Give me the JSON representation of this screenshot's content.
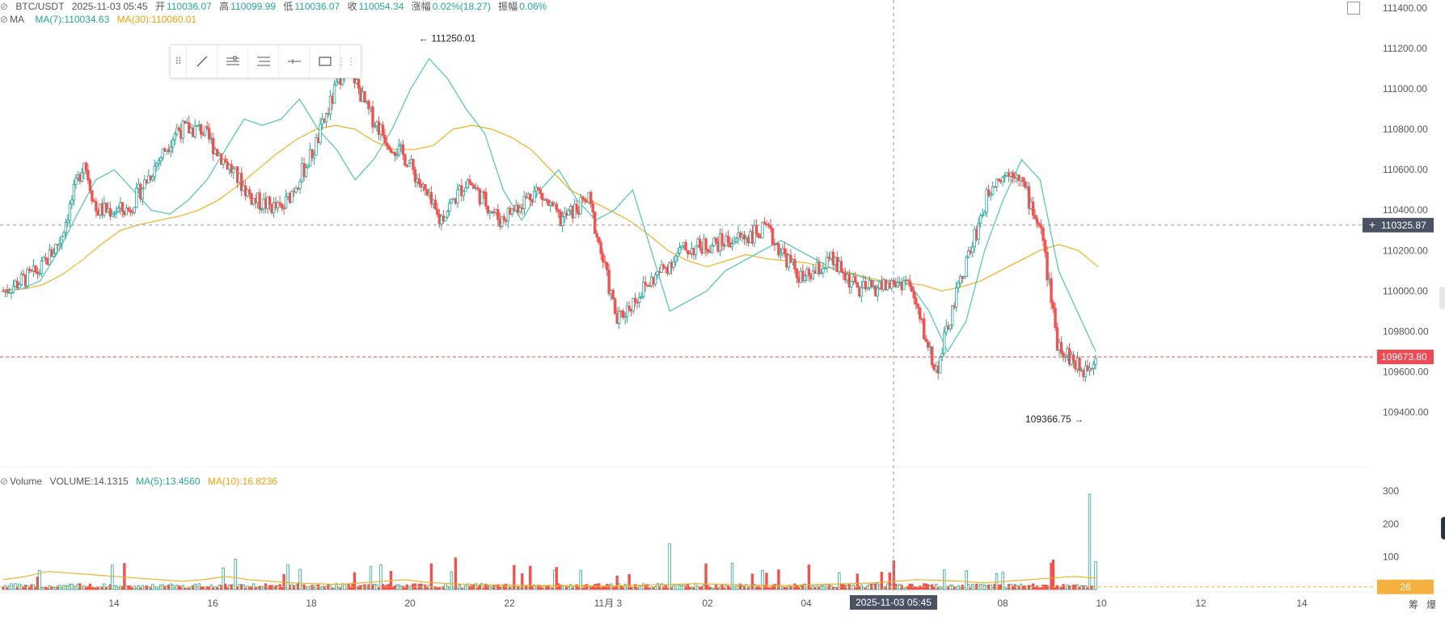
{
  "header": {
    "symbol": "BTC/USDT",
    "datetime": "2025-11-03 05:45",
    "open_label": "开",
    "open": "110036.07",
    "high_label": "高",
    "high": "110099.99",
    "low_label": "低",
    "low": "110036.07",
    "close_label": "收",
    "close": "110054.34",
    "change_label": "涨幅",
    "change": "0.02%(18.27)",
    "amplitude_label": "振幅",
    "amplitude": "0.06%"
  },
  "ma_legend": {
    "name": "MA",
    "ma7": "MA(7):110034.63",
    "ma30": "MA(30):110060.01"
  },
  "volume_legend": {
    "name": "Volume",
    "volume": "VOLUME:14.1315",
    "ma5": "MA(5):13.4560",
    "ma10": "MA(10):16.8236"
  },
  "bottom_right": {
    "left": "筹",
    "right": "爆"
  },
  "colors": {
    "up": "#26a69a",
    "down": "#ef5350",
    "ma7": "#4ec5b4",
    "ma30": "#f2b01e",
    "crosshair_label_bg": "#4a5363",
    "last_price_bg": "#ef4a53",
    "volume_badge_bg": "#f5b13f"
  },
  "icons": [
    "drag-grip-icon",
    "trend-line-icon",
    "parallel-lines-icon",
    "fib-lines-icon",
    "horizontal-ray-icon",
    "rectangle-icon",
    "toolbar-handle-icon",
    "expand-icon",
    "bell-icon",
    "plus-icon"
  ],
  "chart_data": {
    "type": "candlestick",
    "symbol": "BTC/USDT",
    "price_axis": {
      "ticks": [
        109400,
        109600,
        109800,
        110000,
        110200,
        110400,
        110600,
        110800,
        111000,
        111200,
        111400
      ],
      "range": [
        109250,
        111420
      ]
    },
    "volume_axis": {
      "ticks": [
        100,
        200,
        300
      ],
      "range": [
        0,
        320
      ]
    },
    "x_ticks": [
      "14",
      "16",
      "18",
      "20",
      "22",
      "11月 3",
      "02",
      "04",
      "2025-11-03 05:45",
      "08",
      "10",
      "12",
      "14"
    ],
    "annotations": {
      "high": "111250.01",
      "low": "109366.75"
    },
    "crosshair": {
      "price": "110325.87",
      "time": "2025-11-03 05:45"
    },
    "last_price": "109673.80",
    "last_volume": "26",
    "ma7_points": [
      110005,
      110010,
      110050,
      110200,
      110380,
      110550,
      110600,
      110500,
      110400,
      110380,
      110450,
      110550,
      110700,
      110850,
      110820,
      110850,
      110950,
      110800,
      110700,
      110550,
      110650,
      110800,
      111000,
      111150,
      111050,
      110900,
      110780,
      110500,
      110350,
      110500,
      110600,
      110450,
      110350,
      110400,
      110500,
      110200,
      109900,
      109950,
      110000,
      110100,
      110150,
      110200,
      110250,
      110200,
      110150,
      110100,
      110080,
      110050,
      110050,
      110030,
      109900,
      109700,
      109850,
      110200,
      110450,
      110650,
      110550,
      110100,
      109900,
      109700
    ],
    "ma30_points": [
      110000,
      110010,
      110030,
      110080,
      110150,
      110230,
      110300,
      110330,
      110350,
      110370,
      110400,
      110450,
      110520,
      110600,
      110680,
      110750,
      110800,
      110820,
      110800,
      110740,
      110700,
      110700,
      110720,
      110800,
      110820,
      110800,
      110760,
      110700,
      110600,
      110500,
      110450,
      110400,
      110350,
      110280,
      110200,
      110150,
      110120,
      110150,
      110180,
      110160,
      110150,
      110140,
      110120,
      110100,
      110070,
      110050,
      110040,
      110030,
      110000,
      110020,
      110050,
      110100,
      110150,
      110200,
      110230,
      110200,
      110120
    ],
    "volume_ma_points": [
      30,
      40,
      55,
      50,
      45,
      40,
      35,
      30,
      25,
      30,
      40,
      30,
      25,
      20,
      18,
      15,
      20,
      25,
      30,
      22,
      18,
      15,
      14,
      13,
      12,
      12,
      11,
      10,
      12,
      14,
      15,
      18,
      16,
      14,
      13,
      12,
      14,
      16,
      18,
      20,
      25,
      30,
      28,
      25,
      20,
      25,
      30,
      35,
      40,
      35
    ]
  }
}
